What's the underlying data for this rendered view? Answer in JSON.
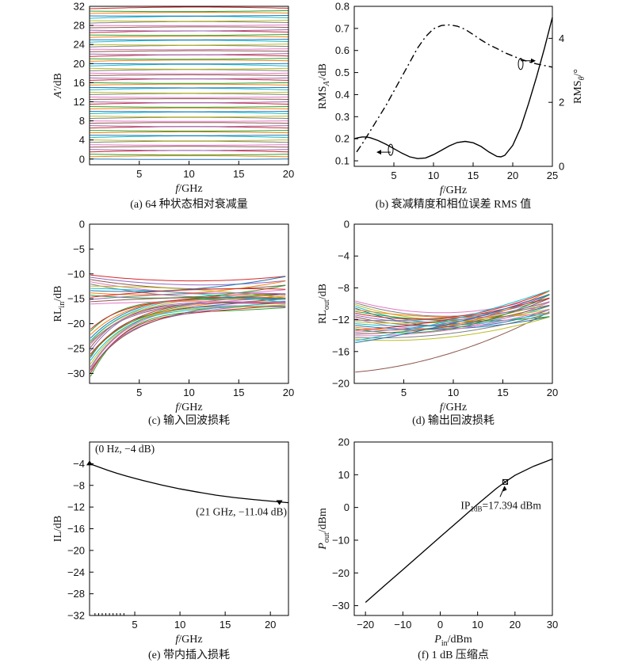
{
  "colors": {
    "axis": "#000000",
    "ink": "#111111",
    "palette": [
      "#1f77b4",
      "#ff7f0e",
      "#2ca02c",
      "#d62728",
      "#9467bd",
      "#8c564b",
      "#e377c2",
      "#7f7f7f",
      "#bcbd22",
      "#17becf"
    ]
  },
  "chart_data": [
    {
      "id": "a",
      "type": "line",
      "caption": "(a) 64 种状态相对衰减量",
      "xlabel_italic": "f",
      "xlabel_rest": "/GHz",
      "ylabel_italic": "A'",
      "ylabel_rest": "/dB",
      "xlim": [
        0,
        20
      ],
      "ylim": [
        -1.2,
        32
      ],
      "xticks": [
        5,
        10,
        15,
        20
      ],
      "yticks": [
        0,
        4,
        8,
        12,
        16,
        20,
        24,
        28,
        32
      ],
      "series_summary": "64 curves, relative attenuation 0 to 31.5 dB in 0.5 dB steps, nearly flat vs frequency",
      "states_count": 64,
      "state_step_dB": 0.5,
      "grid": false
    },
    {
      "id": "b",
      "type": "line",
      "caption": "(b) 衰减精度和相位误差 RMS 值",
      "xlabel_italic": "f",
      "xlabel_rest": "/GHz",
      "ylabel_left": "RMS",
      "ylabel_left_sub": "A'",
      "ylabel_left_rest": "/dB",
      "ylabel_right": "RMS",
      "ylabel_right_sub": "θ",
      "ylabel_right_rest": "/°",
      "xlim": [
        0,
        25
      ],
      "ylim_left": [
        0.075,
        0.8
      ],
      "ylim_right": [
        0,
        5
      ],
      "xticks": [
        5,
        10,
        15,
        20,
        25
      ],
      "yticks_left": [
        0.1,
        0.2,
        0.3,
        0.4,
        0.5,
        0.6,
        0.7,
        0.8
      ],
      "yticks_right": [
        0,
        2,
        4
      ],
      "series": [
        {
          "axis": "left",
          "style": "solid",
          "x": [
            0,
            0.5,
            1,
            1.5,
            2,
            3,
            4,
            5,
            6,
            7,
            8,
            9,
            10,
            11,
            12,
            13,
            14,
            15,
            16,
            17,
            18,
            18.5,
            19,
            20,
            21,
            22,
            23,
            24,
            25
          ],
          "y": [
            0.2,
            0.205,
            0.208,
            0.208,
            0.205,
            0.192,
            0.175,
            0.155,
            0.135,
            0.118,
            0.11,
            0.113,
            0.128,
            0.148,
            0.168,
            0.183,
            0.188,
            0.182,
            0.165,
            0.14,
            0.12,
            0.118,
            0.125,
            0.17,
            0.25,
            0.36,
            0.48,
            0.61,
            0.75
          ]
        },
        {
          "axis": "right",
          "style": "dashdot",
          "x": [
            0.3,
            1,
            2,
            3,
            4,
            5,
            6,
            7,
            8,
            9,
            10,
            11,
            12,
            13,
            14,
            15,
            16,
            17,
            18,
            19,
            20,
            21,
            22,
            23,
            24,
            25
          ],
          "y": [
            0.45,
            0.7,
            1.1,
            1.5,
            1.9,
            2.35,
            2.8,
            3.25,
            3.7,
            4.05,
            4.3,
            4.4,
            4.42,
            4.38,
            4.28,
            4.12,
            3.95,
            3.8,
            3.68,
            3.55,
            3.45,
            3.35,
            3.27,
            3.2,
            3.15,
            3.1
          ]
        }
      ],
      "grid": false
    },
    {
      "id": "c",
      "type": "line",
      "caption": "(c) 输入回波损耗",
      "xlabel_italic": "f",
      "xlabel_rest": "/GHz",
      "ylabel": "RL",
      "ylabel_sub": "in",
      "ylabel_rest": "/dB",
      "xlim": [
        0,
        20
      ],
      "ylim": [
        -32,
        0
      ],
      "xticks": [
        5,
        10,
        15,
        20
      ],
      "yticks": [
        0,
        -5,
        -10,
        -15,
        -20,
        -25,
        -30
      ],
      "series_summary": "input return loss curves for many states, -31 to -10 dB",
      "grid": false
    },
    {
      "id": "d",
      "type": "line",
      "caption": "(d) 输出回波损耗",
      "xlabel_italic": "f",
      "xlabel_rest": "/GHz",
      "ylabel": "RL",
      "ylabel_sub": "out",
      "ylabel_rest": "/dB",
      "xlim": [
        0,
        20
      ],
      "ylim": [
        -20,
        0
      ],
      "xticks": [
        5,
        10,
        15,
        20
      ],
      "yticks": [
        0,
        -4,
        -8,
        -12,
        -16,
        -20
      ],
      "series_summary": "output return loss curves for many states, -19 to -8 dB",
      "grid": false
    },
    {
      "id": "e",
      "type": "line",
      "caption": "(e) 带内插入损耗",
      "xlabel_italic": "f",
      "xlabel_rest": "/GHz",
      "ylabel": "IL/dB",
      "xlim": [
        0,
        22
      ],
      "ylim": [
        -32,
        0
      ],
      "xticks": [
        5,
        10,
        15,
        20
      ],
      "yticks": [
        -4,
        -8,
        -12,
        -16,
        -20,
        -24,
        -28,
        -32
      ],
      "x": [
        0,
        1,
        2,
        3,
        4,
        5,
        6,
        8,
        10,
        12,
        14,
        16,
        18,
        20,
        21,
        22
      ],
      "y": [
        -4.0,
        -4.6,
        -5.2,
        -5.75,
        -6.25,
        -6.7,
        -7.15,
        -7.95,
        -8.65,
        -9.25,
        -9.8,
        -10.25,
        -10.6,
        -10.9,
        -11.04,
        -11.2
      ],
      "markers": [
        {
          "x": 0,
          "y": -4,
          "label": "(0 Hz, −4 dB)"
        },
        {
          "x": 21,
          "y": -11.04,
          "label": "(21 GHz, −11.04 dB)"
        }
      ],
      "grid": false
    },
    {
      "id": "f",
      "type": "line",
      "caption": "(f) 1 dB 压缩点",
      "xlabel_italic": "P",
      "xlabel_sub": "in",
      "xlabel_rest": "/dBm",
      "ylabel_italic": "P",
      "ylabel_sub": "out",
      "ylabel_rest": "/dBm",
      "xlim": [
        -23,
        30
      ],
      "ylim": [
        -33,
        20
      ],
      "xticks": [
        -20,
        -10,
        0,
        10,
        20,
        30
      ],
      "yticks": [
        20,
        10,
        0,
        -10,
        -20,
        -30
      ],
      "x": [
        -20,
        -15,
        -10,
        -5,
        0,
        5,
        10,
        15,
        17.394,
        20,
        25,
        30
      ],
      "y": [
        -29,
        -24,
        -19,
        -14,
        -9,
        -4,
        1,
        5.8,
        7.8,
        9.8,
        12.6,
        14.8
      ],
      "annotation": {
        "x": 17.394,
        "y": 7.8,
        "text_main": "IP",
        "text_sub": "1dB",
        "text_rest": "=17.394 dBm"
      },
      "grid": false
    }
  ]
}
